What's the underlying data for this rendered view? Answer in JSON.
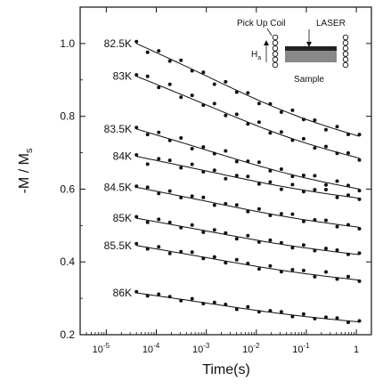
{
  "chart_data": {
    "type": "scatter",
    "xlabel": "Time(s)",
    "ylabel_main": "-M / M",
    "ylabel_sub": "s",
    "x_scale": "log",
    "xlim": [
      3e-06,
      2
    ],
    "ylim": [
      0.2,
      1.1
    ],
    "grid": false,
    "x_ticks": [
      {
        "value": 1e-05,
        "base": "10",
        "exp": "-5"
      },
      {
        "value": 0.0001,
        "base": "10",
        "exp": "-4"
      },
      {
        "value": 0.001,
        "base": "10",
        "exp": "-3"
      },
      {
        "value": 0.01,
        "base": "10",
        "exp": "-2"
      },
      {
        "value": 0.1,
        "base": "10",
        "exp": "-1"
      },
      {
        "value": 1,
        "base": "1",
        "exp": ""
      }
    ],
    "y_ticks": [
      {
        "value": 0.2,
        "label": "0.2"
      },
      {
        "value": 0.4,
        "label": "0.4"
      },
      {
        "value": 0.6,
        "label": "0.6"
      },
      {
        "value": 0.8,
        "label": "0.8"
      },
      {
        "value": 1.0,
        "label": "1.0"
      }
    ],
    "series": [
      {
        "name": "82.5K",
        "start": 1.0,
        "end": 0.745,
        "scatter": [
          0.005,
          -0.01,
          0.008,
          -0.006,
          0.01,
          -0.004,
          0.006,
          -0.012,
          0.009,
          -0.005,
          0.007,
          -0.008,
          0.004,
          -0.006,
          0.011,
          -0.003,
          0.006,
          -0.01,
          0.008,
          -0.004,
          0.005
        ]
      },
      {
        "name": "83K",
        "start": 0.91,
        "end": 0.685,
        "scatter": [
          0.004,
          0.012,
          -0.006,
          0.015,
          -0.008,
          0.01,
          -0.004,
          0.013,
          -0.007,
          0.009,
          -0.005,
          0.012,
          -0.006,
          0.008,
          -0.004,
          0.01,
          -0.006,
          0.007,
          -0.003,
          0.006,
          -0.005
        ]
      },
      {
        "name": "83.5K",
        "start": 0.765,
        "end": 0.6,
        "scatter": [
          0.004,
          -0.006,
          0.009,
          -0.004,
          0.012,
          -0.008,
          0.006,
          -0.003,
          0.014,
          -0.006,
          0.004,
          0.01,
          -0.005,
          0.008,
          -0.004,
          0.006,
          0.012,
          -0.007,
          0.01,
          0.004,
          -0.004
        ]
      },
      {
        "name": "84K",
        "start": 0.69,
        "end": 0.575,
        "scatter": [
          0.004,
          -0.015,
          0.006,
          0.008,
          -0.006,
          0.01,
          -0.004,
          0.007,
          -0.01,
          0.005,
          0.009,
          -0.005,
          0.006,
          -0.008,
          0.01,
          -0.004,
          0.006,
          0.011,
          -0.006,
          0.004,
          -0.003
        ]
      },
      {
        "name": "84.5K",
        "start": 0.605,
        "end": 0.495,
        "scatter": [
          0.003,
          0.006,
          -0.005,
          0.008,
          -0.004,
          0.006,
          0.009,
          -0.006,
          0.004,
          0.007,
          -0.005,
          0.008,
          -0.004,
          0.006,
          0.01,
          -0.005,
          0.004,
          0.007,
          -0.006,
          0.003,
          -0.004
        ]
      },
      {
        "name": "85K",
        "start": 0.52,
        "end": 0.42,
        "scatter": [
          0.004,
          -0.006,
          0.008,
          0.005,
          -0.004,
          0.009,
          -0.005,
          0.007,
          0.004,
          -0.006,
          0.008,
          -0.004,
          0.006,
          0.004,
          -0.005,
          0.007,
          -0.004,
          0.006,
          0.005,
          -0.003,
          0.004
        ]
      },
      {
        "name": "85.5K",
        "start": 0.445,
        "end": 0.35,
        "scatter": [
          0.005,
          -0.004,
          0.007,
          -0.006,
          0.004,
          0.008,
          -0.004,
          0.006,
          -0.005,
          0.009,
          0.004,
          -0.006,
          0.007,
          -0.004,
          0.006,
          0.008,
          -0.005,
          0.012,
          -0.004,
          0.006,
          -0.003
        ]
      },
      {
        "name": "86K",
        "start": 0.315,
        "end": 0.235,
        "scatter": [
          0.003,
          -0.004,
          0.005,
          0.003,
          -0.004,
          0.006,
          -0.003,
          0.005,
          0.004,
          -0.005,
          0.006,
          -0.003,
          0.004,
          0.005,
          -0.004,
          0.006,
          -0.003,
          0.004,
          0.005,
          -0.004,
          0.003
        ]
      }
    ],
    "line_color": "#111111",
    "marker_color": "#111111",
    "inset": {
      "pickup_label": "Pick Up Coil",
      "laser_label": "LASER",
      "field_label_main": "H",
      "field_label_sub": "a",
      "sample_label": "Sample"
    }
  }
}
